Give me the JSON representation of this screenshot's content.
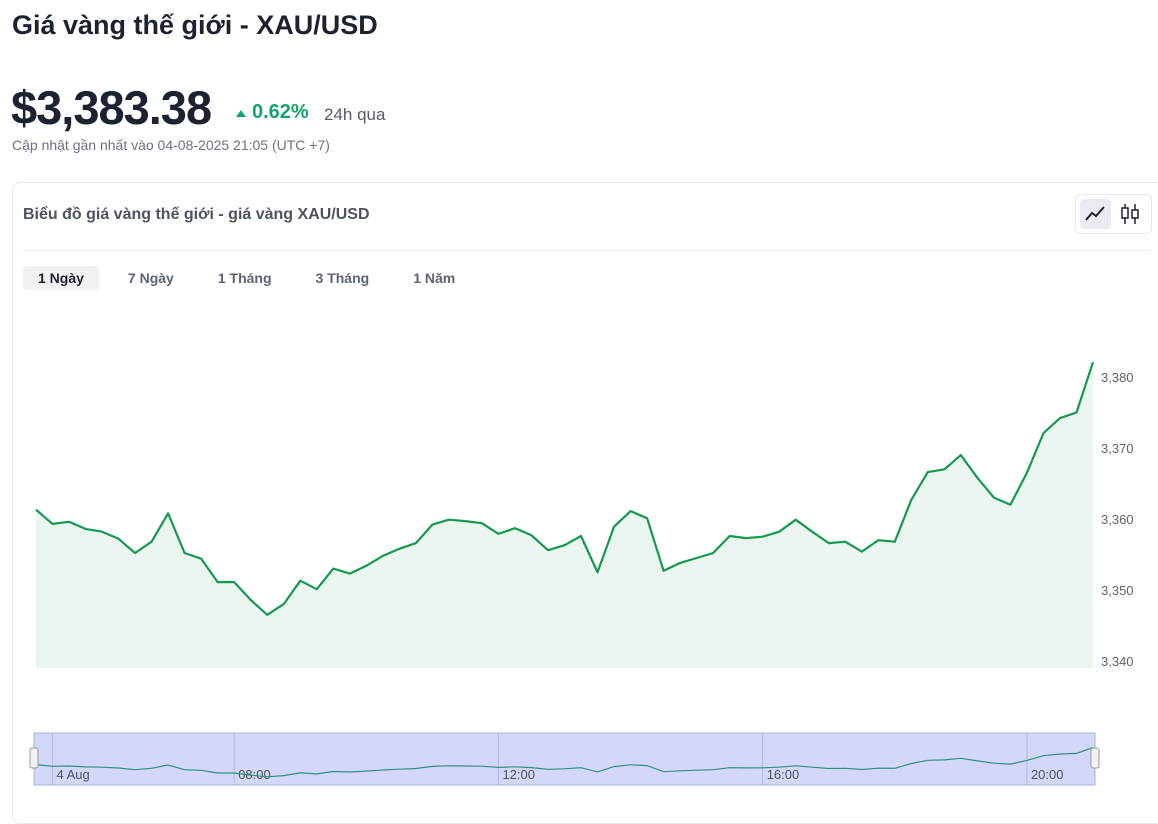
{
  "header": {
    "title": "Giá vàng thế giới - XAU/USD",
    "price": "$3,383.38",
    "change": "0.62%",
    "period": "24h qua",
    "updated": "Cập nhật gần nhất vào 04-08-2025 21:05 (UTC +7)"
  },
  "card": {
    "title": "Biểu đồ giá vàng thế giới - giá vàng XAU/USD",
    "ranges": [
      "1 Ngày",
      "7 Ngày",
      "1 Tháng",
      "3 Tháng",
      "1 Năm"
    ],
    "active_range": 0
  },
  "chart_data": {
    "type": "area",
    "color": "#16994f",
    "x": [
      5,
      5.25,
      5.5,
      5.75,
      6,
      6.25,
      6.5,
      6.75,
      7,
      7.25,
      7.5,
      7.75,
      8,
      8.25,
      8.5,
      8.75,
      9,
      9.25,
      9.5,
      9.75,
      10,
      10.25,
      10.5,
      10.75,
      11,
      11.25,
      11.5,
      11.75,
      12,
      12.25,
      12.5,
      12.75,
      13,
      13.25,
      13.5,
      13.75,
      14,
      14.25,
      14.5,
      14.75,
      15,
      15.25,
      15.5,
      15.75,
      16,
      16.25,
      16.5,
      16.75,
      17,
      17.25,
      17.5,
      17.75,
      18,
      18.25,
      18.5,
      18.75,
      19,
      19.25,
      19.5,
      19.75,
      20,
      20.25,
      20.5,
      20.75,
      21
    ],
    "values": [
      3361.3,
      3359.3,
      3359.6,
      3358.6,
      3358.2,
      3357.2,
      3355.2,
      3356.8,
      3360.8,
      3355.2,
      3354.4,
      3351.1,
      3351.1,
      3348.6,
      3346.5,
      3348.0,
      3351.3,
      3350.1,
      3353.0,
      3352.3,
      3353.4,
      3354.8,
      3355.8,
      3356.6,
      3359.2,
      3359.9,
      3359.7,
      3359.4,
      3357.9,
      3358.7,
      3357.7,
      3355.6,
      3356.3,
      3357.6,
      3352.5,
      3358.9,
      3361.1,
      3360.1,
      3352.7,
      3353.8,
      3354.5,
      3355.2,
      3357.6,
      3357.3,
      3357.5,
      3358.2,
      3359.9,
      3358.2,
      3356.6,
      3356.8,
      3355.4,
      3357.0,
      3356.8,
      3362.7,
      3366.6,
      3367.0,
      3369.0,
      3365.8,
      3363.0,
      3362.0,
      3366.5,
      3372.1,
      3374.2,
      3375.0,
      3382.1
    ],
    "xlim": [
      5,
      21
    ],
    "ylim": [
      3339,
      3390
    ],
    "yticks": [
      {
        "value": 3340,
        "label": "3,340"
      },
      {
        "value": 3350,
        "label": "3,350"
      },
      {
        "value": 3360,
        "label": "3,360"
      },
      {
        "value": 3370,
        "label": "3,370"
      },
      {
        "value": 3380,
        "label": "3,380"
      }
    ],
    "xticks": [
      {
        "value": 5.25,
        "label": "4 Aug"
      },
      {
        "value": 8,
        "label": "08:00"
      },
      {
        "value": 12,
        "label": "12:00"
      },
      {
        "value": 16,
        "label": "16:00"
      },
      {
        "value": 20,
        "label": "20:00"
      }
    ]
  }
}
